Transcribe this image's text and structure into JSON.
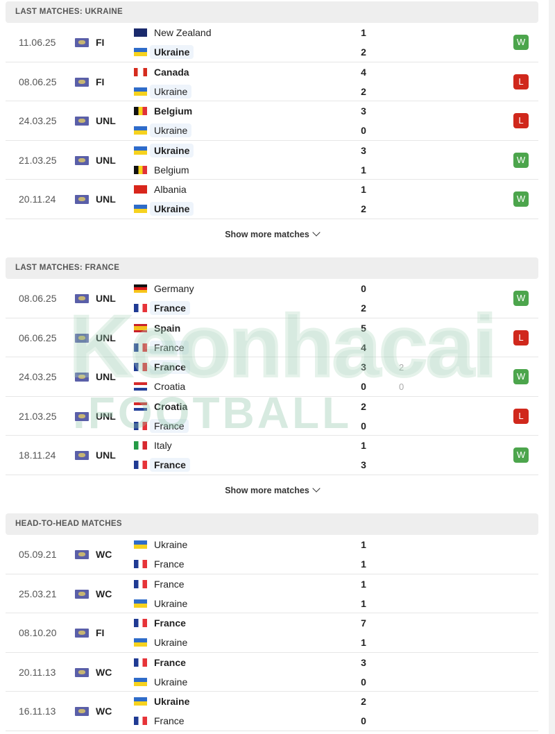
{
  "sections": [
    {
      "title": "LAST MATCHES: UKRAINE",
      "show_more": "Show more matches",
      "matches": [
        {
          "date": "11.06.25",
          "comp": "FI",
          "home": "New Zealand",
          "home_flag": "nz",
          "away": "Ukraine",
          "away_flag": "ua",
          "hs": "1",
          "as": "2",
          "bold": "away",
          "hl": "away",
          "result": "W"
        },
        {
          "date": "08.06.25",
          "comp": "FI",
          "home": "Canada",
          "home_flag": "ca",
          "away": "Ukraine",
          "away_flag": "ua",
          "hs": "4",
          "as": "2",
          "bold": "home",
          "hl": "away",
          "result": "L"
        },
        {
          "date": "24.03.25",
          "comp": "UNL",
          "home": "Belgium",
          "home_flag": "be",
          "away": "Ukraine",
          "away_flag": "ua",
          "hs": "3",
          "as": "0",
          "bold": "home",
          "hl": "away",
          "result": "L"
        },
        {
          "date": "21.03.25",
          "comp": "UNL",
          "home": "Ukraine",
          "home_flag": "ua",
          "away": "Belgium",
          "away_flag": "be",
          "hs": "3",
          "as": "1",
          "bold": "home",
          "hl": "home",
          "result": "W"
        },
        {
          "date": "20.11.24",
          "comp": "UNL",
          "home": "Albania",
          "home_flag": "al",
          "away": "Ukraine",
          "away_flag": "ua",
          "hs": "1",
          "as": "2",
          "bold": "away",
          "hl": "away",
          "result": "W"
        }
      ]
    },
    {
      "title": "LAST MATCHES: FRANCE",
      "show_more": "Show more matches",
      "matches": [
        {
          "date": "08.06.25",
          "comp": "UNL",
          "home": "Germany",
          "home_flag": "de",
          "away": "France",
          "away_flag": "fr",
          "hs": "0",
          "as": "2",
          "bold": "away",
          "hl": "away",
          "result": "W"
        },
        {
          "date": "06.06.25",
          "comp": "UNL",
          "home": "Spain",
          "home_flag": "es",
          "away": "France",
          "away_flag": "fr",
          "hs": "5",
          "as": "4",
          "bold": "home",
          "hl": "away",
          "result": "L"
        },
        {
          "date": "24.03.25",
          "comp": "UNL",
          "home": "France",
          "home_flag": "fr",
          "away": "Croatia",
          "away_flag": "hr",
          "hs": "3",
          "as": "0",
          "hp": "2",
          "ap": "0",
          "bold": "home",
          "hl": "home",
          "result": "W"
        },
        {
          "date": "21.03.25",
          "comp": "UNL",
          "home": "Croatia",
          "home_flag": "hr",
          "away": "France",
          "away_flag": "fr",
          "hs": "2",
          "as": "0",
          "bold": "home",
          "hl": "away",
          "result": "L"
        },
        {
          "date": "18.11.24",
          "comp": "UNL",
          "home": "Italy",
          "home_flag": "it",
          "away": "France",
          "away_flag": "fr",
          "hs": "1",
          "as": "3",
          "bold": "away",
          "hl": "away",
          "result": "W"
        }
      ]
    },
    {
      "title": "HEAD-TO-HEAD MATCHES",
      "matches": [
        {
          "date": "05.09.21",
          "comp": "WC",
          "home": "Ukraine",
          "home_flag": "ua",
          "away": "France",
          "away_flag": "fr",
          "hs": "1",
          "as": "1",
          "bold": "",
          "hl": ""
        },
        {
          "date": "25.03.21",
          "comp": "WC",
          "home": "France",
          "home_flag": "fr",
          "away": "Ukraine",
          "away_flag": "ua",
          "hs": "1",
          "as": "1",
          "bold": "",
          "hl": ""
        },
        {
          "date": "08.10.20",
          "comp": "FI",
          "home": "France",
          "home_flag": "fr",
          "away": "Ukraine",
          "away_flag": "ua",
          "hs": "7",
          "as": "1",
          "bold": "home",
          "hl": ""
        },
        {
          "date": "20.11.13",
          "comp": "WC",
          "home": "France",
          "home_flag": "fr",
          "away": "Ukraine",
          "away_flag": "ua",
          "hs": "3",
          "as": "0",
          "bold": "home",
          "hl": ""
        },
        {
          "date": "16.11.13",
          "comp": "WC",
          "home": "Ukraine",
          "home_flag": "ua",
          "away": "France",
          "away_flag": "fr",
          "hs": "2",
          "as": "0",
          "bold": "home",
          "hl": ""
        }
      ]
    }
  ],
  "watermark": {
    "line1": "Keonhacai",
    "line2": ".FOOTBALL"
  },
  "colors": {
    "win": "#4ca54c",
    "loss": "#d0281c",
    "header_bg": "#eeeeee",
    "highlight": "#eef4fb"
  }
}
